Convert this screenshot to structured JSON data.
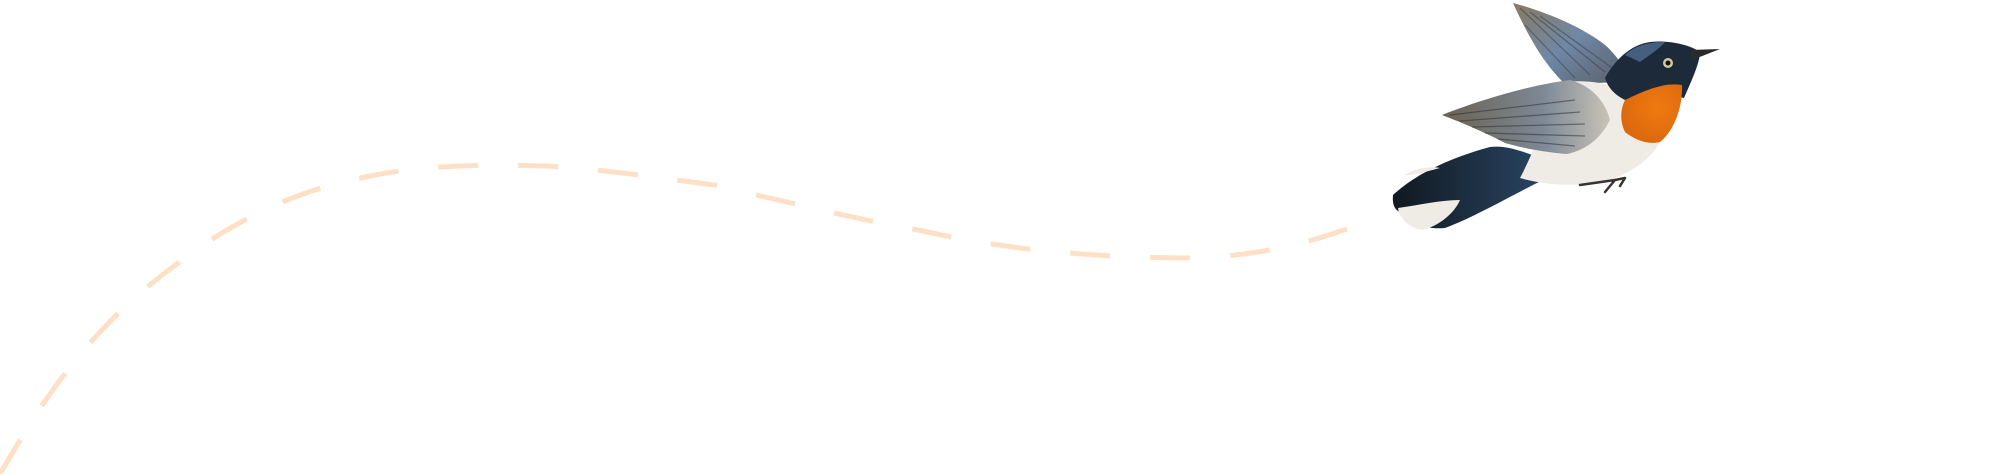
{
  "illustration": {
    "subject": "bird-icon",
    "path_style": "dashed",
    "colors": {
      "background": "#ffffff",
      "flight_path": "#fde0c6",
      "bird_orange": "#e8730f",
      "bird_blue_black": "#1d2a3a",
      "bird_white": "#efece6",
      "bird_wing_grey": "#7a7f86"
    }
  }
}
